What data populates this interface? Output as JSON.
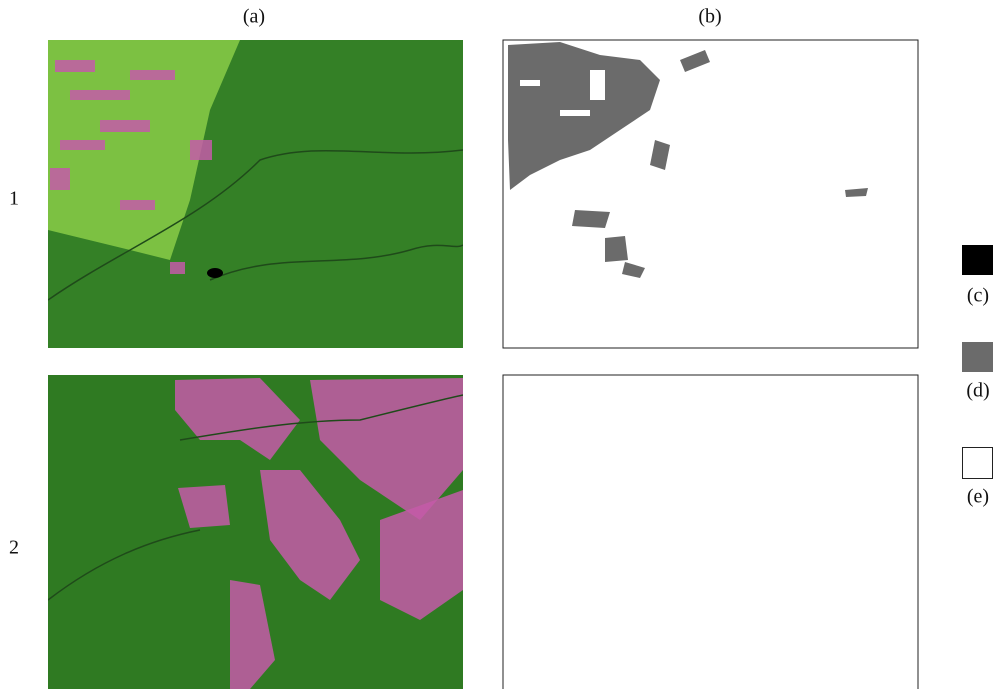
{
  "columns": [
    "(a)",
    "(b)"
  ],
  "rows": [
    "1",
    "2"
  ],
  "legend": [
    "(c)",
    "(d)",
    "(e)"
  ]
}
